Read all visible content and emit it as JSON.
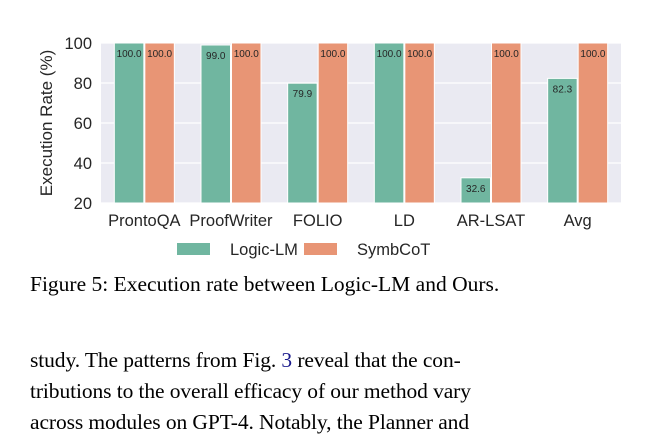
{
  "chart_data": {
    "type": "bar",
    "title": "",
    "xlabel": "",
    "ylabel": "Execution Rate (%)",
    "ylim": [
      20,
      100
    ],
    "yticks": [
      20,
      40,
      60,
      80,
      100
    ],
    "grid": true,
    "legend_position": "bottom",
    "categories": [
      "ProntoQA",
      "ProofWriter",
      "FOLIO",
      "LD",
      "AR-LSAT",
      "Avg"
    ],
    "series": [
      {
        "name": "Logic-LM",
        "color": "#70b6a0",
        "values": [
          100.0,
          99.0,
          79.9,
          100.0,
          32.6,
          82.3
        ],
        "labels": [
          "100.0",
          "99.0",
          "79.9",
          "100.0",
          "32.6",
          "82.3"
        ]
      },
      {
        "name": "SymbCoT",
        "color": "#e89575",
        "values": [
          100.0,
          100.0,
          100.0,
          100.0,
          100.0,
          100.0
        ],
        "labels": [
          "100.0",
          "100.0",
          "100.0",
          "100.0",
          "100.0",
          "100.0"
        ]
      }
    ]
  },
  "colors": {
    "plot_bg": "#eaeaf2",
    "grid": "#ffffff",
    "text": "#262626",
    "link": "#1a1a8c"
  },
  "caption": "Figure 5: Execution rate between Logic-LM and Ours.",
  "paragraph": {
    "line1_a": "study. The patterns from Fig. ",
    "line1_ref": "3",
    "line1_b": " reveal that the con-",
    "line2": "tributions to the overall efficacy of our method vary",
    "line3": "across modules on GPT-4. Notably, the Planner and"
  }
}
